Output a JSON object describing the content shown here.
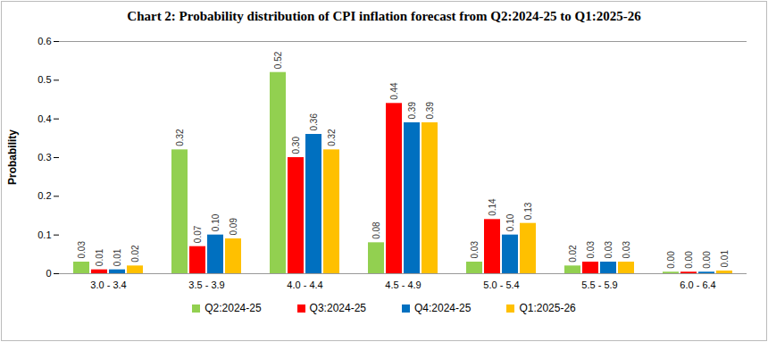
{
  "chart_data": {
    "type": "bar",
    "title": "Chart 2: Probability distribution of  CPI inflation forecast from Q2:2024-25 to Q1:2025-26",
    "y_label": "Probability",
    "categories": [
      "3.0 - 3.4",
      "3.5 - 3.9",
      "4.0 - 4.4",
      "4.5 - 4.9",
      "5.0 - 5.4",
      "5.5 - 5.9",
      "6.0 - 6.4"
    ],
    "series": [
      {
        "name": "Q2:2024-25",
        "color": "#92d050",
        "values": [
          0.03,
          0.32,
          0.52,
          0.08,
          0.03,
          0.02,
          0.004
        ],
        "value_labels": [
          "0.03",
          "0.32",
          "0.52",
          "0.08",
          "0.03",
          "0.02",
          "0.00"
        ]
      },
      {
        "name": "Q3:2024-25",
        "color": "#ff0000",
        "values": [
          0.01,
          0.07,
          0.3,
          0.44,
          0.14,
          0.03,
          0.004
        ],
        "value_labels": [
          "0.01",
          "0.07",
          "0.30",
          "0.44",
          "0.14",
          "0.03",
          "0.00"
        ]
      },
      {
        "name": "Q4:2024-25",
        "color": "#0070c0",
        "values": [
          0.01,
          0.1,
          0.36,
          0.39,
          0.1,
          0.03,
          0.004
        ],
        "value_labels": [
          "0.01",
          "0.10",
          "0.36",
          "0.39",
          "0.10",
          "0.03",
          "0.00"
        ]
      },
      {
        "name": "Q1:2025-26",
        "color": "#ffc000",
        "values": [
          0.02,
          0.09,
          0.32,
          0.39,
          0.13,
          0.03,
          0.007
        ],
        "value_labels": [
          "0.02",
          "0.09",
          "0.32",
          "0.39",
          "0.13",
          "0.03",
          "0.01"
        ]
      }
    ],
    "ylim": [
      0,
      0.6
    ],
    "yticks": [
      0,
      0.1,
      0.2,
      0.3,
      0.4,
      0.5,
      0.6
    ],
    "grid": false,
    "legend": "bottom",
    "data_labels": true
  }
}
